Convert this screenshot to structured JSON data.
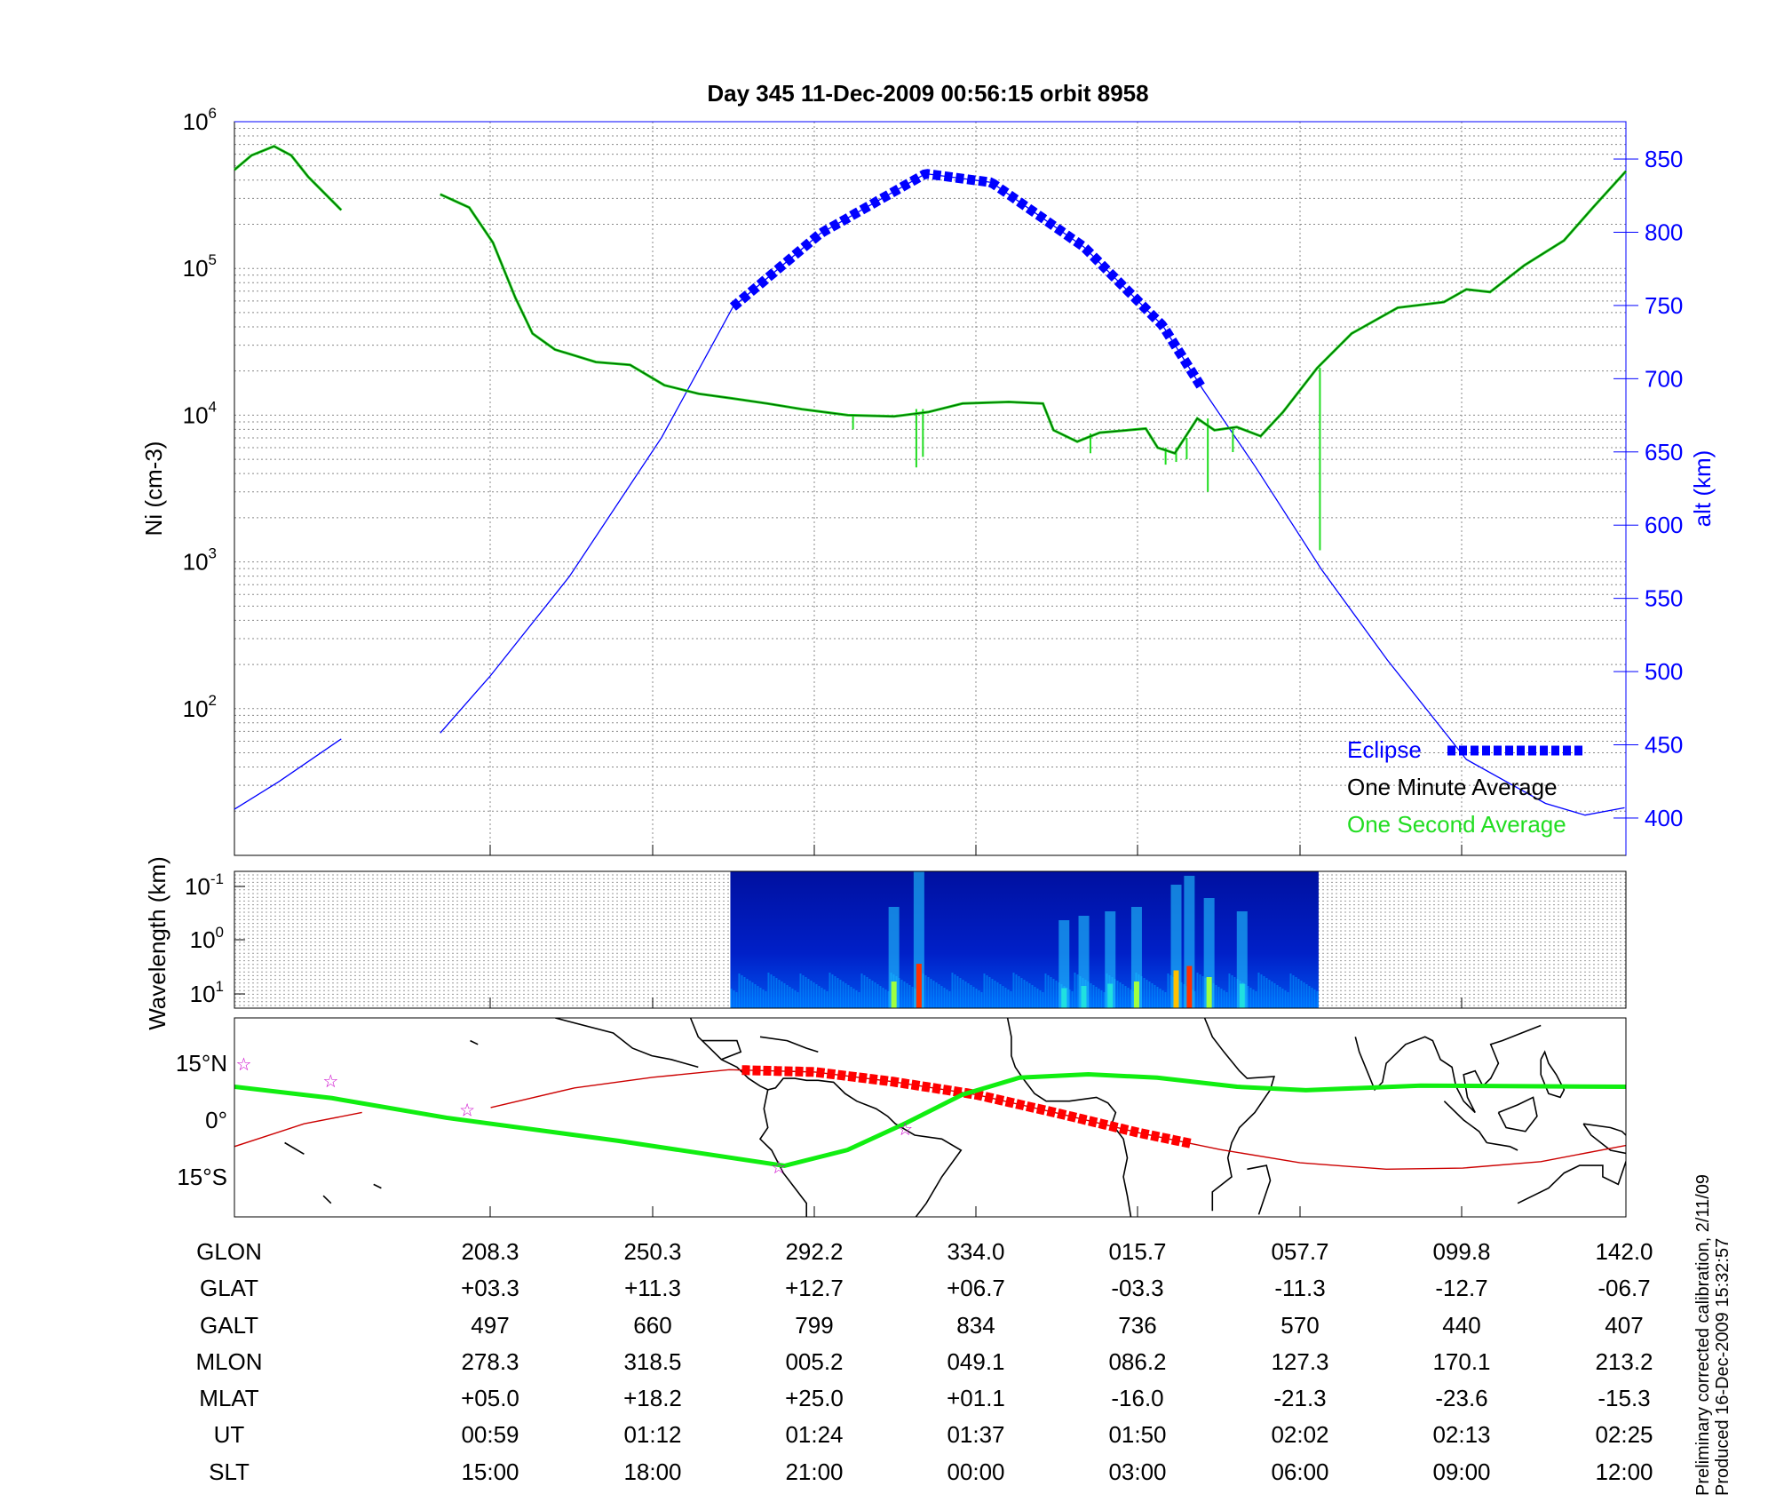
{
  "title": "Day 345  11-Dec-2009 00:56:15   orbit 8958",
  "footer": {
    "line1": "Preliminary corrected calibration, 2/11/09",
    "line2": "Produced 16-Dec-2009 15:32:57"
  },
  "colors": {
    "ni_minute": "#006400",
    "ni_second": "#22dd22",
    "altitude": "#0000ff",
    "eclipse": "#0000ff",
    "track": "#cc0000",
    "track_eclipse": "#ff0000",
    "mag_equator": "#11ee11",
    "stars": "#cc00cc"
  },
  "chart_data": [
    {
      "type": "line",
      "title": "Day 345  11-Dec-2009 00:56:15   orbit 8958",
      "ylabel": "Ni (cm-3)",
      "ylabel_main": "N",
      "ylabel_sub": "i",
      "ylabel_rest": " (cm",
      "ylabel_sup": "-3",
      "ylabel_end": ")",
      "yscale": "log",
      "ylim": [
        10,
        1000000
      ],
      "yticks": [
        {
          "base": "10",
          "exp": "2",
          "v": 100
        },
        {
          "base": "10",
          "exp": "3",
          "v": 1000
        },
        {
          "base": "10",
          "exp": "4",
          "v": 10000
        },
        {
          "base": "10",
          "exp": "5",
          "v": 100000
        },
        {
          "base": "10",
          "exp": "6",
          "v": 1000000
        }
      ],
      "y2label": "alt (km)",
      "y2lim": [
        374.5,
        875.5
      ],
      "y2ticks": [
        400,
        450,
        500,
        550,
        600,
        650,
        700,
        750,
        800,
        850
      ],
      "xunit": "UT minutes after 00:00",
      "xlim": [
        39.6,
        145.1
      ],
      "xticks": [
        59,
        72,
        84,
        97,
        110,
        122,
        133,
        145
      ],
      "grid": true,
      "legend": {
        "placement": "bottom-right",
        "items": [
          "Eclipse",
          "One Minute Average",
          "One Second Average"
        ]
      },
      "series": [
        {
          "name": "One Minute Average",
          "axis": "left",
          "segments": [
            [
              [
                39.6,
                470000
              ],
              [
                40.9,
                590000
              ],
              [
                42.6,
                680000
              ],
              [
                43.9,
                590000
              ],
              [
                45.2,
                420000
              ],
              [
                47.7,
                250000
              ]
            ],
            [
              [
                55.2,
                320000
              ],
              [
                57.4,
                260000
              ],
              [
                59.2,
                150000
              ],
              [
                60.9,
                63000
              ],
              [
                62.2,
                36000
              ],
              [
                63.9,
                28000
              ],
              [
                67.0,
                23000
              ],
              [
                69.6,
                22000
              ],
              [
                72.2,
                16000
              ],
              [
                74.8,
                14000
              ],
              [
                77.4,
                13000
              ],
              [
                80.0,
                12000
              ],
              [
                82.6,
                11000
              ],
              [
                86.1,
                10000
              ],
              [
                89.6,
                9800
              ],
              [
                92.2,
                10500
              ],
              [
                94.8,
                12000
              ],
              [
                98.3,
                12300
              ],
              [
                100.9,
                12000
              ],
              [
                101.7,
                7900
              ],
              [
                103.5,
                6600
              ],
              [
                105.2,
                7600
              ],
              [
                108.7,
                8100
              ],
              [
                109.6,
                6000
              ],
              [
                110.9,
                5500
              ],
              [
                112.6,
                9500
              ],
              [
                113.9,
                7900
              ],
              [
                115.6,
                8300
              ],
              [
                117.4,
                7200
              ],
              [
                119.1,
                10500
              ],
              [
                121.7,
                21000
              ],
              [
                124.3,
                36000
              ],
              [
                127.8,
                54000
              ],
              [
                131.3,
                59000
              ],
              [
                133.0,
                72000
              ],
              [
                134.8,
                69000
              ],
              [
                137.4,
                105000
              ],
              [
                140.4,
                155000
              ],
              [
                142.6,
                260000
              ],
              [
                145.1,
                460000
              ]
            ]
          ]
        },
        {
          "name": "One Second Average",
          "axis": "left",
          "spikes": [
            [
              91.3,
              11000,
              4400
            ],
            [
              91.8,
              11000,
              5200
            ],
            [
              86.5,
              10000,
              8000
            ],
            [
              104.5,
              7500,
              5500
            ],
            [
              110.2,
              6000,
              4600
            ],
            [
              111.0,
              6000,
              4800
            ],
            [
              111.8,
              7000,
              5000
            ],
            [
              113.4,
              9500,
              3000
            ],
            [
              115.3,
              8300,
              5600
            ],
            [
              121.9,
              21000,
              1200
            ]
          ]
        },
        {
          "name": "Altitude",
          "axis": "right",
          "segments": [
            [
              [
                39.6,
                406
              ],
              [
                43.0,
                425
              ],
              [
                47.7,
                454
              ]
            ],
            [
              [
                55.2,
                458
              ],
              [
                59,
                497
              ],
              [
                65,
                565
              ],
              [
                72,
                660
              ],
              [
                77.4,
                749
              ],
              [
                84,
                799
              ],
              [
                92,
                840
              ],
              [
                97,
                834
              ],
              [
                104,
                790
              ],
              [
                110,
                736
              ],
              [
                113,
                693
              ],
              [
                117,
                640
              ],
              [
                122,
                570
              ],
              [
                127,
                508
              ],
              [
                133,
                440
              ],
              [
                139,
                410
              ],
              [
                142,
                402
              ],
              [
                145,
                407
              ]
            ]
          ]
        },
        {
          "name": "Eclipse",
          "axis": "right",
          "range": [
            77.4,
            113
          ]
        }
      ]
    },
    {
      "type": "heatmap",
      "ylabel": "Wavelength (km)",
      "yscale": "log",
      "yticks": [
        {
          "base": "10",
          "exp": "-1"
        },
        {
          "base": "10",
          "exp": "0"
        },
        {
          "base": "10",
          "exp": "1"
        }
      ],
      "data_range": [
        77.2,
        121.8
      ],
      "colormap": "jet",
      "bright_bands": [
        [
          89.6,
          0.6
        ],
        [
          91.5,
          1.0
        ],
        [
          102.5,
          0.45
        ],
        [
          104,
          0.5
        ],
        [
          106,
          0.55
        ],
        [
          108,
          0.6
        ],
        [
          111,
          0.85
        ],
        [
          112,
          0.95
        ],
        [
          113.5,
          0.7
        ],
        [
          116,
          0.55
        ]
      ]
    },
    {
      "type": "map",
      "ylabels": [
        "15°N",
        "0°",
        "15°S"
      ],
      "lon_range": [
        142,
        502
      ],
      "lat_range": [
        -25.6,
        27
      ],
      "track": [
        [
          142,
          -7
        ],
        [
          160,
          -1
        ],
        [
          175,
          2
        ]
      ],
      "track2": [
        [
          208.3,
          3.3
        ],
        [
          230,
          8.5
        ],
        [
          250.3,
          11.3
        ],
        [
          270,
          13.3
        ],
        [
          292.2,
          12.7
        ],
        [
          312,
          10.2
        ],
        [
          334.0,
          6.7
        ],
        [
          355,
          1.8
        ],
        [
          15.7,
          -3.3
        ],
        [
          37,
          -7.8
        ],
        [
          57.7,
          -11.3
        ],
        [
          80,
          -13.0
        ],
        [
          99.8,
          -12.7
        ],
        [
          120,
          -11
        ],
        [
          142.0,
          -6.7
        ]
      ],
      "track_eclipse": [
        273.3,
        29.6
      ],
      "mag_equator": [
        [
          142,
          8.8
        ],
        [
          167.2,
          5.8
        ],
        [
          196.9,
          0.6
        ],
        [
          241.3,
          -5.5
        ],
        [
          284.3,
          -12.1
        ],
        [
          300.6,
          -7.9
        ],
        [
          315.5,
          -0.9
        ],
        [
          330.3,
          6.7
        ],
        [
          345.1,
          11.2
        ],
        [
          2.9,
          12.1
        ],
        [
          20.7,
          11.2
        ],
        [
          41.4,
          8.8
        ],
        [
          59.2,
          7.9
        ],
        [
          88.9,
          9.1
        ],
        [
          142,
          8.8
        ]
      ],
      "stars": [
        [
          144.4,
          14.8
        ],
        [
          166.9,
          10.3
        ],
        [
          202.2,
          2.7
        ],
        [
          282.8,
          -12.4
        ],
        [
          315.5,
          -2.4
        ]
      ]
    }
  ],
  "table": {
    "rows": [
      {
        "label": "GLON",
        "values": [
          "208.3",
          "250.3",
          "292.2",
          "334.0",
          "015.7",
          "057.7",
          "099.8",
          "142.0"
        ]
      },
      {
        "label": "GLAT",
        "values": [
          "+03.3",
          "+11.3",
          "+12.7",
          "+06.7",
          "-03.3",
          "-11.3",
          "-12.7",
          "-06.7"
        ]
      },
      {
        "label": "GALT",
        "values": [
          "497",
          "660",
          "799",
          "834",
          "736",
          "570",
          "440",
          "407"
        ]
      },
      {
        "label": "MLON",
        "values": [
          "278.3",
          "318.5",
          "005.2",
          "049.1",
          "086.2",
          "127.3",
          "170.1",
          "213.2"
        ]
      },
      {
        "label": "MLAT",
        "values": [
          "+05.0",
          "+18.2",
          "+25.0",
          "+01.1",
          "-16.0",
          "-21.3",
          "-23.6",
          "-15.3"
        ]
      },
      {
        "label": "UT",
        "values": [
          "00:59",
          "01:12",
          "01:24",
          "01:37",
          "01:50",
          "02:02",
          "02:13",
          "02:25"
        ]
      },
      {
        "label": "SLT",
        "values": [
          "15:00",
          "18:00",
          "21:00",
          "00:00",
          "03:00",
          "06:00",
          "09:00",
          "12:00"
        ]
      }
    ]
  }
}
